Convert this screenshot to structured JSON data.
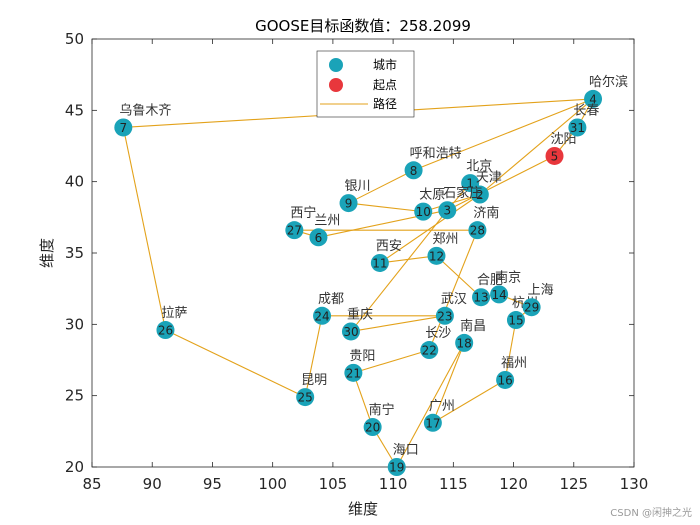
{
  "chart_data": {
    "type": "scatter",
    "title": "GOOSE目标函数值：258.2099",
    "xlabel": "维度",
    "ylabel": "维度",
    "xlim": [
      85,
      130
    ],
    "ylim": [
      20,
      50
    ],
    "xticks": [
      85,
      90,
      95,
      100,
      105,
      110,
      115,
      120,
      125,
      130
    ],
    "yticks": [
      20,
      25,
      30,
      35,
      40,
      45,
      50
    ],
    "legend": {
      "position": "top-center",
      "entries": [
        "城市",
        "起点",
        "路径"
      ]
    },
    "colors": {
      "city": "#1aa3b8",
      "start": "#e8373c",
      "path": "#e3a21b",
      "axis": "#262626"
    },
    "cities": [
      {
        "id": 1,
        "name": "北京",
        "x": 116.4,
        "y": 39.9
      },
      {
        "id": 2,
        "name": "天津",
        "x": 117.2,
        "y": 39.1
      },
      {
        "id": 3,
        "name": "石家庄",
        "x": 114.5,
        "y": 38.0
      },
      {
        "id": 4,
        "name": "哈尔滨",
        "x": 126.6,
        "y": 45.8
      },
      {
        "id": 5,
        "name": "沈阳",
        "x": 123.4,
        "y": 41.8
      },
      {
        "id": 6,
        "name": "兰州",
        "x": 103.8,
        "y": 36.1
      },
      {
        "id": 7,
        "name": "乌鲁木齐",
        "x": 87.6,
        "y": 43.8
      },
      {
        "id": 8,
        "name": "呼和浩特",
        "x": 111.7,
        "y": 40.8
      },
      {
        "id": 9,
        "name": "银川",
        "x": 106.3,
        "y": 38.5
      },
      {
        "id": 10,
        "name": "太原",
        "x": 112.5,
        "y": 37.9
      },
      {
        "id": 11,
        "name": "西安",
        "x": 108.9,
        "y": 34.3
      },
      {
        "id": 12,
        "name": "郑州",
        "x": 113.6,
        "y": 34.8
      },
      {
        "id": 13,
        "name": "合肥",
        "x": 117.3,
        "y": 31.9
      },
      {
        "id": 14,
        "name": "南京",
        "x": 118.8,
        "y": 32.1
      },
      {
        "id": 15,
        "name": "杭州",
        "x": 120.2,
        "y": 30.3
      },
      {
        "id": 16,
        "name": "福州",
        "x": 119.3,
        "y": 26.1
      },
      {
        "id": 17,
        "name": "广州",
        "x": 113.3,
        "y": 23.1
      },
      {
        "id": 18,
        "name": "南昌",
        "x": 115.9,
        "y": 28.7
      },
      {
        "id": 19,
        "name": "海口",
        "x": 110.3,
        "y": 20.0
      },
      {
        "id": 20,
        "name": "南宁",
        "x": 108.3,
        "y": 22.8
      },
      {
        "id": 21,
        "name": "贵阳",
        "x": 106.7,
        "y": 26.6
      },
      {
        "id": 22,
        "name": "长沙",
        "x": 113.0,
        "y": 28.2
      },
      {
        "id": 23,
        "name": "武汉",
        "x": 114.3,
        "y": 30.6
      },
      {
        "id": 24,
        "name": "成都",
        "x": 104.1,
        "y": 30.6
      },
      {
        "id": 25,
        "name": "昆明",
        "x": 102.7,
        "y": 24.9
      },
      {
        "id": 26,
        "name": "拉萨",
        "x": 91.1,
        "y": 29.6
      },
      {
        "id": 27,
        "name": "西宁",
        "x": 101.8,
        "y": 36.6
      },
      {
        "id": 28,
        "name": "济南",
        "x": 117.0,
        "y": 36.6
      },
      {
        "id": 29,
        "name": "上海",
        "x": 121.5,
        "y": 31.2
      },
      {
        "id": 30,
        "name": "重庆",
        "x": 106.5,
        "y": 29.5
      },
      {
        "id": 31,
        "name": "长春",
        "x": 125.3,
        "y": 43.8
      }
    ],
    "start_id": 5,
    "route": [
      5,
      31,
      4,
      8,
      9,
      10,
      2,
      1,
      3,
      30,
      23,
      24,
      25,
      26,
      7,
      4,
      2,
      11,
      12,
      13,
      14,
      29,
      15,
      16,
      17,
      18,
      19,
      20,
      21,
      22,
      28,
      27,
      6,
      3,
      5
    ]
  },
  "watermark": "CSDN @闲抻之光"
}
